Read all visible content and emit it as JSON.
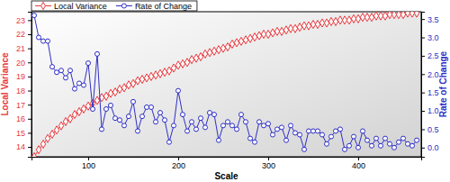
{
  "chart_data": {
    "type": "line",
    "xlabel": "Scale",
    "ylabel": "Local Variance",
    "y2label": "Rate of Change",
    "legend": "top",
    "grid": false,
    "xlim": [
      37,
      470
    ],
    "xticks": [
      100,
      200,
      300,
      400
    ],
    "ylim": [
      13.3,
      23.6
    ],
    "yticks": [
      14,
      15,
      16,
      17,
      18,
      19,
      20,
      21,
      22,
      23
    ],
    "y2lim": [
      -0.25,
      3.7
    ],
    "y2ticks": [
      {
        "value": 0,
        "label": "0.0"
      },
      0.5,
      {
        "value": 1,
        "label": "1.0"
      },
      1.5,
      {
        "value": 2,
        "label": "2.0"
      },
      2.5,
      {
        "value": 3,
        "label": "3.0"
      },
      3.5
    ],
    "x": [
      40,
      45,
      50,
      55,
      60,
      65,
      70,
      75,
      80,
      85,
      90,
      95,
      100,
      105,
      110,
      115,
      120,
      125,
      130,
      135,
      140,
      145,
      150,
      155,
      160,
      165,
      170,
      175,
      180,
      185,
      190,
      195,
      200,
      205,
      210,
      215,
      220,
      225,
      230,
      235,
      240,
      245,
      250,
      255,
      260,
      265,
      270,
      275,
      280,
      285,
      290,
      295,
      300,
      305,
      310,
      315,
      320,
      325,
      330,
      335,
      340,
      345,
      350,
      355,
      360,
      365,
      370,
      375,
      380,
      385,
      390,
      395,
      400,
      405,
      410,
      415,
      420,
      425,
      430,
      435,
      440,
      445,
      450,
      455,
      460,
      465
    ],
    "series": [
      {
        "name": "Local Variance",
        "color": "#e8383d",
        "marker": "diamond",
        "line_style": "solid",
        "values": [
          13.3,
          13.8,
          14.2,
          14.6,
          14.9,
          15.2,
          15.5,
          15.8,
          16.0,
          16.3,
          16.5,
          16.7,
          16.9,
          17.1,
          17.3,
          17.5,
          17.6,
          17.8,
          17.9,
          18.1,
          18.2,
          18.4,
          18.5,
          18.7,
          18.8,
          18.9,
          19.0,
          19.1,
          19.2,
          19.3,
          19.4,
          19.6,
          19.8,
          19.9,
          20.0,
          20.2,
          20.3,
          20.4,
          20.6,
          20.7,
          20.8,
          20.9,
          21.0,
          21.1,
          21.3,
          21.4,
          21.5,
          21.6,
          21.7,
          21.8,
          21.9,
          22.0,
          22.0,
          22.1,
          22.2,
          22.2,
          22.3,
          22.4,
          22.4,
          22.5,
          22.6,
          22.6,
          22.7,
          22.7,
          22.8,
          22.8,
          22.9,
          22.9,
          23.0,
          23.0,
          23.0,
          23.1,
          23.1,
          23.2,
          23.2,
          23.2,
          23.3,
          23.3,
          23.3,
          23.4,
          23.4,
          23.4,
          23.4,
          23.5,
          23.5,
          23.5
        ]
      },
      {
        "name": "Rate of Change",
        "color": "#2e2ec8",
        "marker": "circle",
        "line_style": "solid",
        "axis": "y2",
        "values": [
          3.6,
          3.0,
          2.9,
          2.9,
          2.2,
          2.05,
          2.1,
          1.9,
          2.1,
          1.6,
          1.75,
          1.7,
          2.3,
          1.05,
          2.55,
          0.5,
          1.05,
          1.15,
          0.8,
          0.75,
          0.6,
          0.85,
          1.25,
          0.45,
          0.85,
          1.1,
          1.1,
          0.7,
          0.95,
          0.75,
          0.15,
          0.6,
          1.55,
          0.9,
          0.45,
          0.7,
          0.5,
          0.8,
          0.55,
          0.95,
          0.9,
          0.2,
          0.6,
          0.7,
          0.6,
          0.5,
          0.9,
          0.7,
          0.25,
          0.15,
          0.7,
          0.6,
          0.65,
          0.35,
          0.5,
          0.55,
          0.2,
          0.6,
          0.4,
          0.35,
          -0.05,
          0.45,
          0.45,
          0.45,
          0.35,
          0.1,
          0.3,
          0.45,
          0.5,
          -0.05,
          0.05,
          0.3,
          0.0,
          0.45,
          0.2,
          0.05,
          0.25,
          0.05,
          0.25,
          0.1,
          0.0,
          0.15,
          0.25,
          0.1,
          0.05,
          0.2
        ]
      }
    ]
  }
}
